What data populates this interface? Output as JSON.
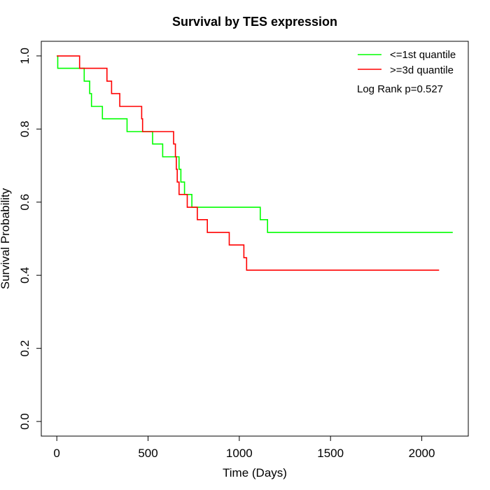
{
  "chart_data": {
    "type": "line",
    "title": "Survival by TES expression",
    "xlabel": "Time (Days)",
    "ylabel": "Survival Probability",
    "xlim": [
      -85,
      2255
    ],
    "ylim": [
      -0.04,
      1.04
    ],
    "xticks": [
      0,
      500,
      1000,
      1500,
      2000
    ],
    "yticks": [
      0.0,
      0.2,
      0.4,
      0.6,
      0.8,
      1.0
    ],
    "xtick_labels": [
      "0",
      "500",
      "1000",
      "1500",
      "2000"
    ],
    "ytick_labels": [
      "0.0",
      "0.2",
      "0.4",
      "0.6",
      "0.8",
      "1.0"
    ],
    "grid": false,
    "legend_position": "top-right",
    "annotation": "Log Rank p=0.527",
    "series": [
      {
        "name": "<=1st quantile",
        "color": "#00ff00",
        "step_points": [
          [
            0,
            1.0
          ],
          [
            5,
            0.966
          ],
          [
            150,
            0.931
          ],
          [
            180,
            0.897
          ],
          [
            190,
            0.862
          ],
          [
            250,
            0.828
          ],
          [
            385,
            0.793
          ],
          [
            525,
            0.759
          ],
          [
            580,
            0.724
          ],
          [
            670,
            0.69
          ],
          [
            680,
            0.655
          ],
          [
            700,
            0.621
          ],
          [
            740,
            0.586
          ],
          [
            1115,
            0.552
          ],
          [
            1155,
            0.517
          ],
          [
            2170,
            0.517
          ]
        ]
      },
      {
        "name": ">=3d quantile",
        "color": "#ff0000",
        "step_points": [
          [
            0,
            1.0
          ],
          [
            125,
            0.966
          ],
          [
            275,
            0.931
          ],
          [
            300,
            0.897
          ],
          [
            345,
            0.862
          ],
          [
            465,
            0.828
          ],
          [
            470,
            0.793
          ],
          [
            640,
            0.759
          ],
          [
            650,
            0.724
          ],
          [
            655,
            0.69
          ],
          [
            660,
            0.655
          ],
          [
            670,
            0.621
          ],
          [
            715,
            0.586
          ],
          [
            770,
            0.552
          ],
          [
            825,
            0.517
          ],
          [
            945,
            0.483
          ],
          [
            1025,
            0.448
          ],
          [
            1040,
            0.414
          ],
          [
            2095,
            0.414
          ]
        ]
      }
    ]
  }
}
